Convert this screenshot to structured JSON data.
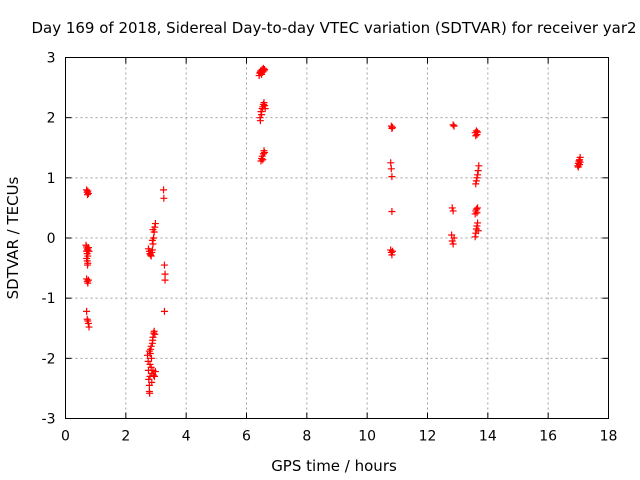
{
  "chart_data": {
    "type": "scatter",
    "title": "Day 169 of 2018, Sidereal Day-to-day VTEC variation (SDTVAR) for receiver yar2",
    "xlabel": "GPS time / hours",
    "ylabel": "SDTVAR / TECUs",
    "xlim": [
      0,
      18
    ],
    "ylim": [
      -3,
      3
    ],
    "xticks": [
      0,
      2,
      4,
      6,
      8,
      10,
      12,
      14,
      16,
      18
    ],
    "yticks": [
      -3,
      -2,
      -1,
      0,
      1,
      2,
      3
    ],
    "grid": true,
    "marker": "+",
    "color": "#ff0000",
    "series": [
      {
        "name": "yar2",
        "points": [
          [
            0.7,
            0.8
          ],
          [
            0.72,
            0.76
          ],
          [
            0.73,
            0.72
          ],
          [
            0.74,
            0.78
          ],
          [
            0.76,
            0.74
          ],
          [
            0.68,
            -0.12
          ],
          [
            0.7,
            -0.15
          ],
          [
            0.72,
            -0.18
          ],
          [
            0.74,
            -0.2
          ],
          [
            0.7,
            -0.22
          ],
          [
            0.72,
            -0.26
          ],
          [
            0.74,
            -0.3
          ],
          [
            0.7,
            -0.34
          ],
          [
            0.72,
            -0.38
          ],
          [
            0.74,
            -0.42
          ],
          [
            0.73,
            -0.45
          ],
          [
            0.76,
            -0.16
          ],
          [
            0.78,
            -0.22
          ],
          [
            0.7,
            -0.68
          ],
          [
            0.72,
            -0.72
          ],
          [
            0.74,
            -0.75
          ],
          [
            0.76,
            -0.7
          ],
          [
            0.7,
            -1.22
          ],
          [
            0.72,
            -1.35
          ],
          [
            0.74,
            -1.38
          ],
          [
            0.76,
            -1.42
          ],
          [
            0.78,
            -1.48
          ],
          [
            2.75,
            -0.18
          ],
          [
            2.78,
            -0.22
          ],
          [
            2.8,
            -0.26
          ],
          [
            2.82,
            -0.28
          ],
          [
            2.84,
            -0.3
          ],
          [
            2.86,
            -0.24
          ],
          [
            2.88,
            -0.2
          ],
          [
            2.9,
            -0.1
          ],
          [
            2.92,
            0.0
          ],
          [
            2.94,
            0.1
          ],
          [
            2.96,
            0.18
          ],
          [
            2.98,
            0.24
          ],
          [
            2.9,
            0.14
          ],
          [
            2.88,
            -0.04
          ],
          [
            2.72,
            -1.95
          ],
          [
            2.74,
            -2.05
          ],
          [
            2.75,
            -2.2
          ],
          [
            2.76,
            -2.35
          ],
          [
            2.78,
            -2.45
          ],
          [
            2.78,
            -2.55
          ],
          [
            2.79,
            -2.58
          ],
          [
            2.8,
            -2.3
          ],
          [
            2.8,
            -2.1
          ],
          [
            2.81,
            -1.92
          ],
          [
            2.82,
            -1.85
          ],
          [
            2.84,
            -1.8
          ],
          [
            2.85,
            -2.0
          ],
          [
            2.86,
            -2.25
          ],
          [
            2.86,
            -2.4
          ],
          [
            2.88,
            -1.75
          ],
          [
            2.89,
            -1.7
          ],
          [
            2.9,
            -2.2
          ],
          [
            2.9,
            -1.65
          ],
          [
            2.92,
            -1.58
          ],
          [
            2.92,
            -2.28
          ],
          [
            2.94,
            -1.55
          ],
          [
            2.95,
            -2.3
          ],
          [
            2.96,
            -1.6
          ],
          [
            2.98,
            -2.22
          ],
          [
            2.84,
            -2.15
          ],
          [
            2.78,
            -1.88
          ],
          [
            3.25,
            0.8
          ],
          [
            3.26,
            0.66
          ],
          [
            3.28,
            -0.45
          ],
          [
            3.3,
            -0.6
          ],
          [
            3.3,
            -0.7
          ],
          [
            3.28,
            -1.22
          ],
          [
            6.42,
            2.7
          ],
          [
            6.44,
            2.74
          ],
          [
            6.46,
            2.76
          ],
          [
            6.48,
            2.78
          ],
          [
            6.5,
            2.72
          ],
          [
            6.52,
            2.8
          ],
          [
            6.54,
            2.76
          ],
          [
            6.56,
            2.82
          ],
          [
            6.58,
            2.78
          ],
          [
            6.6,
            2.8
          ],
          [
            6.45,
            2.0
          ],
          [
            6.46,
            1.95
          ],
          [
            6.48,
            2.1
          ],
          [
            6.5,
            2.05
          ],
          [
            6.52,
            2.15
          ],
          [
            6.54,
            2.18
          ],
          [
            6.56,
            2.22
          ],
          [
            6.58,
            2.25
          ],
          [
            6.6,
            2.2
          ],
          [
            6.62,
            2.15
          ],
          [
            6.48,
            1.28
          ],
          [
            6.5,
            1.32
          ],
          [
            6.52,
            1.36
          ],
          [
            6.54,
            1.3
          ],
          [
            6.56,
            1.4
          ],
          [
            6.58,
            1.45
          ],
          [
            6.6,
            1.42
          ],
          [
            10.8,
            1.86
          ],
          [
            10.82,
            1.82
          ],
          [
            10.84,
            1.84
          ],
          [
            10.78,
            1.25
          ],
          [
            10.8,
            1.15
          ],
          [
            10.82,
            1.02
          ],
          [
            10.82,
            0.44
          ],
          [
            10.78,
            -0.2
          ],
          [
            10.8,
            -0.24
          ],
          [
            10.82,
            -0.28
          ],
          [
            10.84,
            -0.22
          ],
          [
            12.85,
            1.88
          ],
          [
            12.88,
            1.86
          ],
          [
            12.82,
            0.5
          ],
          [
            12.85,
            0.45
          ],
          [
            12.8,
            0.05
          ],
          [
            12.82,
            -0.05
          ],
          [
            12.85,
            -0.1
          ],
          [
            12.88,
            0.0
          ],
          [
            13.58,
            1.75
          ],
          [
            13.6,
            1.7
          ],
          [
            13.62,
            1.78
          ],
          [
            13.64,
            1.72
          ],
          [
            13.66,
            1.76
          ],
          [
            13.6,
            0.9
          ],
          [
            13.62,
            0.95
          ],
          [
            13.64,
            1.0
          ],
          [
            13.66,
            1.05
          ],
          [
            13.68,
            1.12
          ],
          [
            13.7,
            1.2
          ],
          [
            13.58,
            0.4
          ],
          [
            13.6,
            0.45
          ],
          [
            13.62,
            0.48
          ],
          [
            13.64,
            0.42
          ],
          [
            13.66,
            0.5
          ],
          [
            13.58,
            0.02
          ],
          [
            13.6,
            0.08
          ],
          [
            13.62,
            0.15
          ],
          [
            13.64,
            0.2
          ],
          [
            13.66,
            0.25
          ],
          [
            13.68,
            0.12
          ],
          [
            16.98,
            1.2
          ],
          [
            17.0,
            1.24
          ],
          [
            17.02,
            1.28
          ],
          [
            17.04,
            1.3
          ],
          [
            17.06,
            1.34
          ],
          [
            17.0,
            1.18
          ],
          [
            17.04,
            1.22
          ],
          [
            17.06,
            1.26
          ]
        ]
      }
    ]
  }
}
